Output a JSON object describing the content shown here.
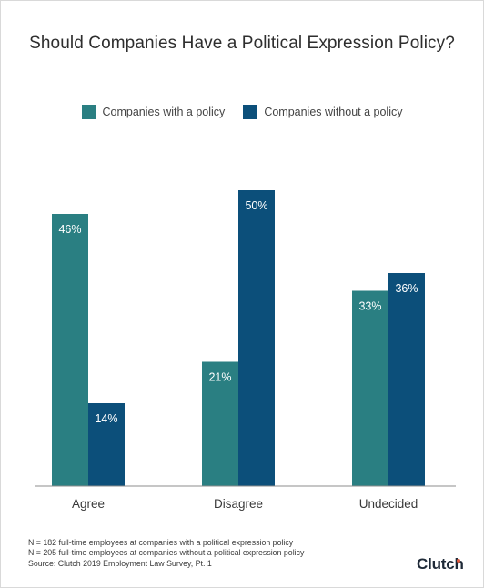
{
  "chart_data": {
    "type": "bar",
    "title": "Should Companies Have a Political Expression Policy?",
    "categories": [
      "Agree",
      "Disagree",
      "Undecided"
    ],
    "series": [
      {
        "name": "Companies with a policy",
        "values": [
          46,
          21,
          33
        ],
        "color": "#2a7f82"
      },
      {
        "name": "Companies without a policy",
        "values": [
          14,
          50,
          36
        ],
        "color": "#0c4f7a"
      }
    ],
    "data_labels": [
      [
        "46%",
        "21%",
        "33%"
      ],
      [
        "14%",
        "50%",
        "36%"
      ]
    ],
    "ylim": [
      0,
      55
    ],
    "grid": false,
    "legend_position": "top-center"
  },
  "footnotes": [
    "N = 182 full-time employees at companies with a political expression policy",
    "N = 205 full-time employees at companies without a political expression policy",
    "Source: Clutch 2019 Employment Law Survey, Pt. 1"
  ],
  "brand": {
    "name": "Clutch",
    "accent_color": "#e45b3e"
  }
}
